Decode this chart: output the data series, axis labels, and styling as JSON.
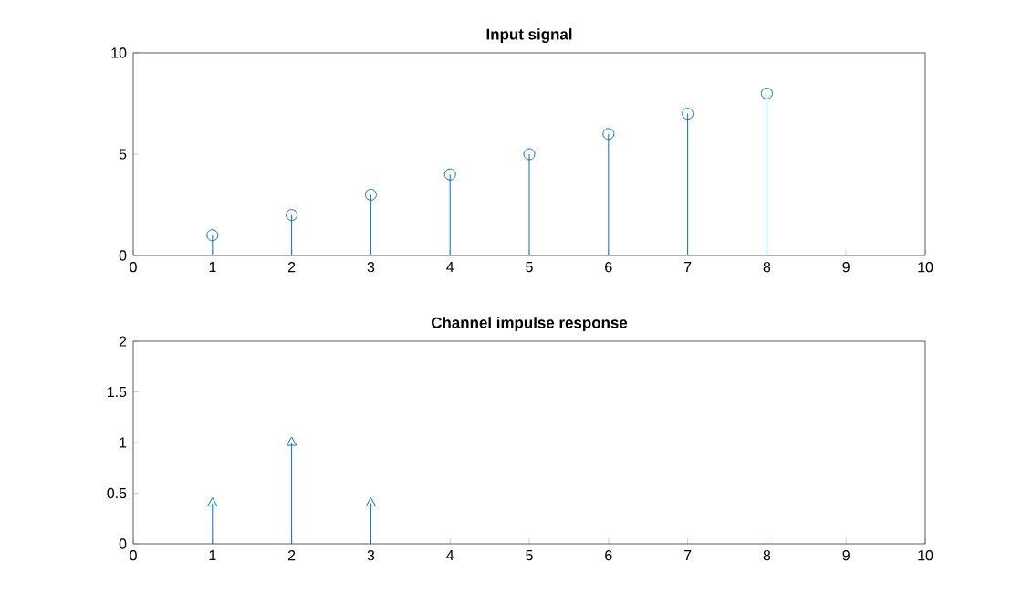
{
  "chart_data": [
    {
      "type": "lollipop",
      "title": "Input signal",
      "x": [
        1,
        2,
        3,
        4,
        5,
        6,
        7,
        8
      ],
      "values": [
        1,
        2,
        3,
        4,
        5,
        6,
        7,
        8
      ],
      "color": "#0072bd",
      "marker": "circle",
      "xlim": [
        0,
        10
      ],
      "xticks": [
        0,
        1,
        2,
        3,
        4,
        5,
        6,
        7,
        8,
        9,
        10
      ],
      "ylim": [
        0,
        10
      ],
      "yticks": [
        0,
        5,
        10
      ]
    },
    {
      "type": "lollipop",
      "title": "Channel impulse response",
      "x": [
        1,
        2,
        3
      ],
      "values": [
        0.4,
        1,
        0.4
      ],
      "color": "#0072bd",
      "marker": "triangle",
      "xlim": [
        0,
        10
      ],
      "xticks": [
        0,
        1,
        2,
        3,
        4,
        5,
        6,
        7,
        8,
        9,
        10
      ],
      "ylim": [
        0,
        2
      ],
      "yticks": [
        0,
        0.5,
        1,
        1.5,
        2
      ]
    }
  ]
}
